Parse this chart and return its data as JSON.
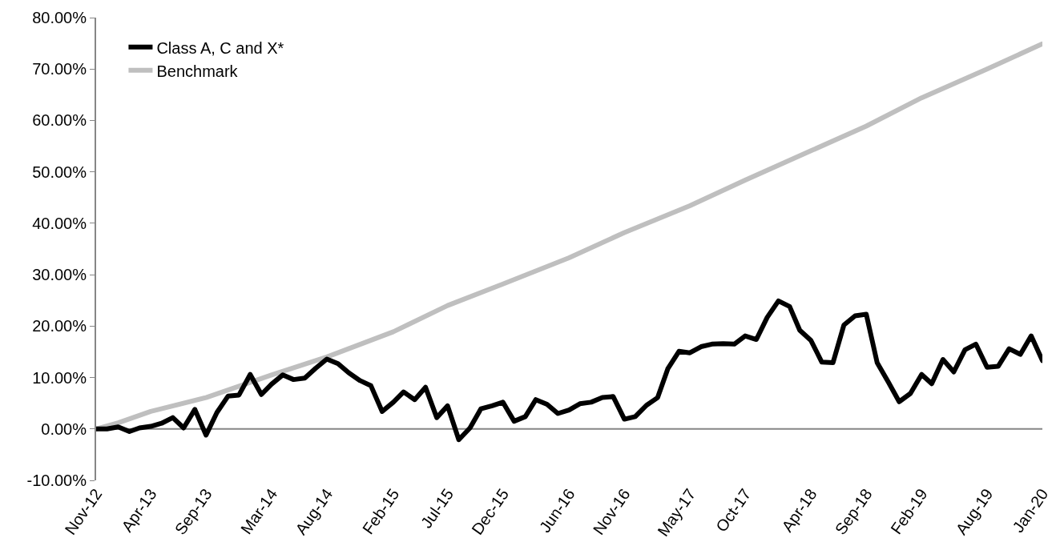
{
  "chart_data": {
    "type": "line",
    "x": [
      "2012-11",
      "2012-12",
      "2013-01",
      "2013-02",
      "2013-03",
      "2013-04",
      "2013-05",
      "2013-06",
      "2013-07",
      "2013-08",
      "2013-09",
      "2013-10",
      "2013-11",
      "2013-12",
      "2014-01",
      "2014-02",
      "2014-03",
      "2014-04",
      "2014-05",
      "2014-06",
      "2014-07",
      "2014-08",
      "2014-09",
      "2014-10",
      "2014-11",
      "2014-12",
      "2015-01",
      "2015-02",
      "2015-03",
      "2015-04",
      "2015-05",
      "2015-06",
      "2015-07",
      "2015-08",
      "2015-09",
      "2015-10",
      "2015-11",
      "2015-12",
      "2016-01",
      "2016-02",
      "2016-03",
      "2016-04",
      "2016-05",
      "2016-06",
      "2016-07",
      "2016-08",
      "2016-09",
      "2016-10",
      "2016-11",
      "2016-12",
      "2017-01",
      "2017-02",
      "2017-03",
      "2017-04",
      "2017-05",
      "2017-06",
      "2017-07",
      "2017-08",
      "2017-09",
      "2017-10",
      "2017-11",
      "2017-12",
      "2018-01",
      "2018-02",
      "2018-03",
      "2018-04",
      "2018-05",
      "2018-06",
      "2018-07",
      "2018-08",
      "2018-09",
      "2018-10",
      "2018-11",
      "2018-12",
      "2019-01",
      "2019-02",
      "2019-03",
      "2019-04",
      "2019-05",
      "2019-06",
      "2019-07",
      "2019-08",
      "2019-09",
      "2019-10",
      "2019-11",
      "2019-12",
      "2020-01"
    ],
    "series": [
      {
        "name": "Class A, C and X*",
        "color": "#000000",
        "values": [
          0,
          0,
          0.4,
          -0.5,
          0.2,
          0.5,
          1.1,
          2.2,
          0.2,
          3.8,
          -1.2,
          3.2,
          6.4,
          6.6,
          10.6,
          6.7,
          8.7,
          10.5,
          9.6,
          9.9,
          11.8,
          13.6,
          12.7,
          10.9,
          9.4,
          8.4,
          3.4,
          5.2,
          7.2,
          5.7,
          8.1,
          2.2,
          4.5,
          -2.1,
          0.2,
          3.9,
          4.5,
          5.2,
          1.5,
          2.4,
          5.7,
          4.8,
          3.0,
          3.7,
          4.9,
          5.2,
          6.1,
          6.3,
          1.9,
          2.4,
          4.6,
          6.1,
          11.7,
          15.1,
          14.8,
          16.0,
          16.5,
          16.6,
          16.5,
          18.1,
          17.4,
          21.7,
          24.9,
          23.8,
          19.2,
          17.2,
          13.0,
          12.9,
          20.2,
          22.0,
          22.3,
          12.9,
          9.1,
          5.3,
          6.9,
          10.6,
          8.8,
          13.5,
          11.1,
          15.4,
          16.5,
          12.0,
          12.2,
          15.6,
          14.5,
          18.1,
          13.3
        ]
      },
      {
        "name": "Benchmark",
        "color": "#bfbfbf",
        "x": [
          "2012-11",
          "2013-01",
          "2013-04",
          "2013-09",
          "2014-03",
          "2014-08",
          "2015-02",
          "2015-07",
          "2015-12",
          "2016-06",
          "2016-11",
          "2017-05",
          "2017-10",
          "2018-04",
          "2018-09",
          "2019-02",
          "2019-08",
          "2020-01"
        ],
        "values": [
          0,
          1.2,
          3.4,
          6.1,
          10.5,
          14.0,
          18.9,
          24.0,
          28.2,
          33.3,
          38.2,
          43.4,
          48.4,
          54.1,
          58.9,
          64.4,
          70.0,
          74.9
        ]
      }
    ],
    "ylim": [
      -10,
      80
    ],
    "yticks": [
      {
        "value": -10,
        "label": "-10.00%"
      },
      {
        "value": 0,
        "label": "0.00%"
      },
      {
        "value": 10,
        "label": "10.00%"
      },
      {
        "value": 20,
        "label": "20.00%"
      },
      {
        "value": 30,
        "label": "30.00%"
      },
      {
        "value": 40,
        "label": "40.00%"
      },
      {
        "value": 50,
        "label": "50.00%"
      },
      {
        "value": 60,
        "label": "60.00%"
      },
      {
        "value": 70,
        "label": "70.00%"
      },
      {
        "value": 80,
        "label": "80.00%"
      }
    ],
    "xlim": [
      "2012-11",
      "2020-01"
    ],
    "xticks": [
      {
        "value": "2012-11",
        "label": "Nov-12"
      },
      {
        "value": "2013-04",
        "label": "Apr-13"
      },
      {
        "value": "2013-09",
        "label": "Sep-13"
      },
      {
        "value": "2014-03",
        "label": "Mar-14"
      },
      {
        "value": "2014-08",
        "label": "Aug-14"
      },
      {
        "value": "2015-02",
        "label": "Feb-15"
      },
      {
        "value": "2015-07",
        "label": "Jul-15"
      },
      {
        "value": "2015-12",
        "label": "Dec-15"
      },
      {
        "value": "2016-06",
        "label": "Jun-16"
      },
      {
        "value": "2016-11",
        "label": "Nov-16"
      },
      {
        "value": "2017-05",
        "label": "May-17"
      },
      {
        "value": "2017-10",
        "label": "Oct-17"
      },
      {
        "value": "2018-04",
        "label": "Apr-18"
      },
      {
        "value": "2018-09",
        "label": "Sep-18"
      },
      {
        "value": "2019-02",
        "label": "Feb-19"
      },
      {
        "value": "2019-08",
        "label": "Aug-19"
      },
      {
        "value": "2020-01",
        "label": "Jan-20"
      }
    ],
    "ref_lines": [
      {
        "axis": "y",
        "value": 0,
        "color": "#868686",
        "line_style": "solid"
      }
    ],
    "grid": false,
    "legend": "top left",
    "marker": "none",
    "line_style": "solid"
  }
}
